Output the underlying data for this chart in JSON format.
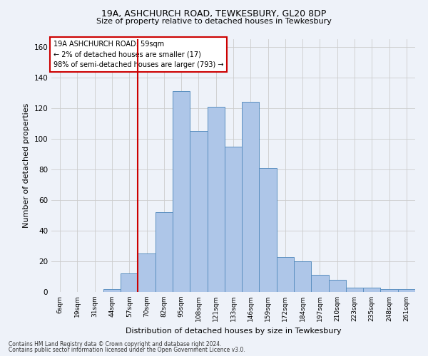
{
  "title1": "19A, ASHCHURCH ROAD, TEWKESBURY, GL20 8DP",
  "title2": "Size of property relative to detached houses in Tewkesbury",
  "xlabel": "Distribution of detached houses by size in Tewkesbury",
  "ylabel": "Number of detached properties",
  "categories": [
    "6sqm",
    "19sqm",
    "31sqm",
    "44sqm",
    "57sqm",
    "70sqm",
    "82sqm",
    "95sqm",
    "108sqm",
    "121sqm",
    "133sqm",
    "146sqm",
    "159sqm",
    "172sqm",
    "184sqm",
    "197sqm",
    "210sqm",
    "223sqm",
    "235sqm",
    "248sqm",
    "261sqm"
  ],
  "values": [
    0,
    0,
    0,
    2,
    12,
    25,
    52,
    131,
    105,
    121,
    95,
    124,
    81,
    23,
    20,
    11,
    8,
    3,
    3,
    2,
    2
  ],
  "bar_color": "#aec6e8",
  "bar_edge_color": "#5a8fc0",
  "vline_color": "#cc0000",
  "vline_x": 4.5,
  "ylim": [
    0,
    165
  ],
  "yticks": [
    0,
    20,
    40,
    60,
    80,
    100,
    120,
    140,
    160
  ],
  "annotation_title": "19A ASHCHURCH ROAD: 59sqm",
  "annotation_line1": "← 2% of detached houses are smaller (17)",
  "annotation_line2": "98% of semi-detached houses are larger (793) →",
  "annotation_box_color": "#ffffff",
  "annotation_box_edge": "#cc0000",
  "footnote1": "Contains HM Land Registry data © Crown copyright and database right 2024.",
  "footnote2": "Contains public sector information licensed under the Open Government Licence v3.0.",
  "grid_color": "#cccccc",
  "bg_color": "#eef2f9"
}
